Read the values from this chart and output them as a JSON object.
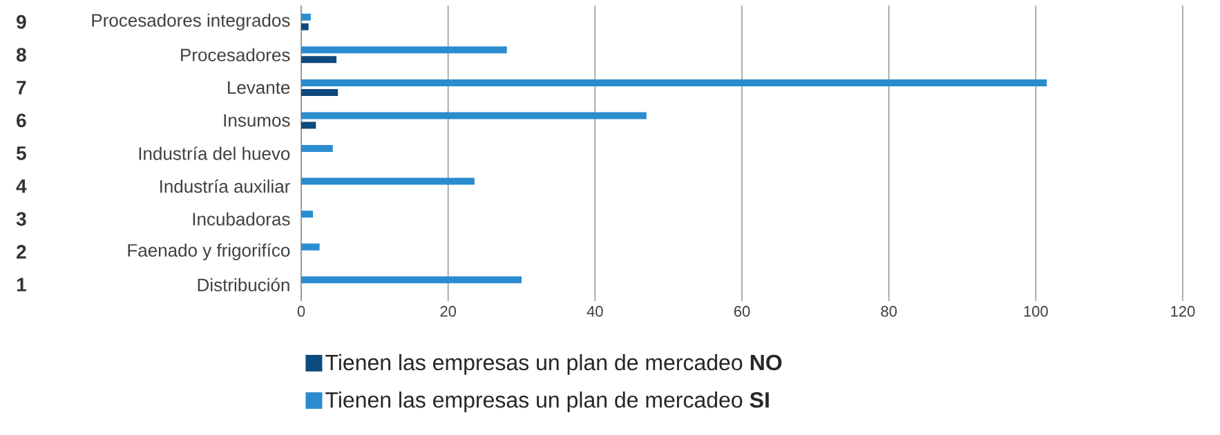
{
  "chart_data": {
    "type": "bar",
    "orientation": "horizontal",
    "categories": [
      "Procesadores integrados",
      "Procesadores",
      "Levante",
      "Insumos",
      "Industría del huevo",
      "Industría auxiliar",
      "Incubadoras",
      "Faenado y frigorifíco",
      "Distribución"
    ],
    "series": [
      {
        "name": "Tienen las empresas un plan de mercadeo **NO**",
        "color": "#0c4a7d",
        "values": [
          1,
          4.8,
          5,
          2,
          0,
          0,
          0,
          0,
          0
        ]
      },
      {
        "name": "Tienen las empresas un plan de mercadeo **SI**",
        "color": "#2a8ccf",
        "values": [
          1.3,
          28,
          101.5,
          47,
          4.3,
          23.6,
          1.6,
          2.5,
          30
        ]
      }
    ],
    "annotations": [
      "9",
      "8",
      "7",
      "6",
      "5",
      "4",
      "3",
      "2",
      "1"
    ],
    "xlim": [
      0,
      120
    ],
    "xticks": [
      0,
      20,
      40,
      60,
      80,
      100,
      120
    ],
    "grid": "x",
    "legend": "bottom"
  }
}
